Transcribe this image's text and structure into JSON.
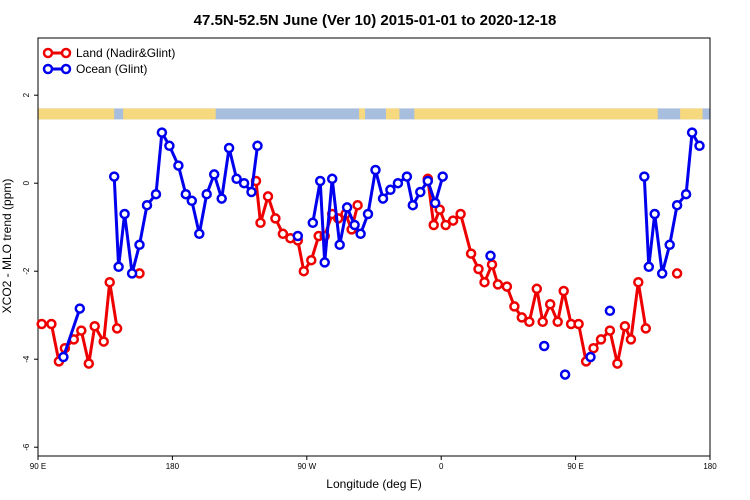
{
  "chart_data": {
    "type": "line",
    "title": "47.5N-52.5N June (Ver 10)   2015-01-01 to 2020-12-18",
    "xlabel": "Longitude (deg E)",
    "ylabel": "XCO2 - MLO trend (ppm)",
    "ylim": [
      -6.2,
      3.3
    ],
    "y_ticks": [
      -6,
      -4,
      -2,
      0,
      2
    ],
    "x_ticks": [
      {
        "pos": 0,
        "label": "90 E"
      },
      {
        "pos": 90,
        "label": "180"
      },
      {
        "pos": 180,
        "label": "90 W"
      },
      {
        "pos": 270,
        "label": "0"
      },
      {
        "pos": 360,
        "label": "90 E"
      },
      {
        "pos": 450,
        "label": "180"
      }
    ],
    "xlim": [
      0,
      450
    ],
    "land_ocean_strip": {
      "y_range": [
        1.45,
        1.7
      ],
      "ocean_color": "#a8bedf",
      "land_color": "#f6d87e"
    },
    "series": [
      {
        "name": "Land (Nadir&Glint)",
        "color": "#ee0000",
        "points": [
          [
            2.5,
            -3.2
          ],
          [
            9,
            -3.2
          ],
          [
            14,
            -4.05
          ],
          [
            18,
            -3.75
          ],
          [
            24,
            -3.55
          ],
          [
            29,
            -3.35
          ],
          [
            34,
            -4.1
          ],
          [
            38,
            -3.25
          ],
          [
            44,
            -3.6
          ],
          [
            48,
            -2.25
          ],
          [
            53,
            -3.3
          ],
          [
            null,
            null
          ],
          [
            68,
            -2.05
          ],
          [
            null,
            null
          ],
          [
            146,
            0.05
          ],
          [
            149,
            -0.9
          ],
          [
            154,
            -0.3
          ],
          [
            159,
            -0.8
          ],
          [
            164,
            -1.15
          ],
          [
            169,
            -1.25
          ],
          [
            174,
            -1.3
          ],
          [
            178,
            -2.0
          ],
          [
            183,
            -1.75
          ],
          [
            188,
            -1.2
          ],
          [
            192,
            -1.2
          ],
          [
            197,
            -0.7
          ],
          [
            201,
            -0.8
          ],
          [
            206,
            -0.7
          ],
          [
            210,
            -1.05
          ],
          [
            214,
            -0.5
          ],
          [
            null,
            null
          ],
          [
            261,
            0.1
          ],
          [
            265,
            -0.95
          ],
          [
            269,
            -0.6
          ],
          [
            273,
            -0.95
          ],
          [
            278,
            -0.85
          ],
          [
            283,
            -0.7
          ],
          [
            290,
            -1.6
          ],
          [
            295,
            -1.95
          ],
          [
            299,
            -2.25
          ],
          [
            304,
            -1.85
          ],
          [
            308,
            -2.3
          ],
          [
            314,
            -2.35
          ],
          [
            319,
            -2.8
          ],
          [
            324,
            -3.05
          ],
          [
            329,
            -3.15
          ],
          [
            334,
            -2.4
          ],
          [
            338,
            -3.15
          ],
          [
            343,
            -2.75
          ],
          [
            348,
            -3.15
          ],
          [
            352,
            -2.45
          ],
          [
            357,
            -3.2
          ],
          [
            362,
            -3.2
          ],
          [
            367,
            -4.05
          ],
          [
            372,
            -3.75
          ],
          [
            377,
            -3.55
          ],
          [
            383,
            -3.35
          ],
          [
            388,
            -4.1
          ],
          [
            393,
            -3.25
          ],
          [
            397,
            -3.55
          ],
          [
            402,
            -2.25
          ],
          [
            407,
            -3.3
          ],
          [
            null,
            null
          ],
          [
            428,
            -2.05
          ]
        ]
      },
      {
        "name": "Ocean (Glint)",
        "color": "#0000ee",
        "points": [
          [
            17,
            -3.95
          ],
          [
            28,
            -2.85
          ],
          [
            null,
            null
          ],
          [
            51,
            0.15
          ],
          [
            54,
            -1.9
          ],
          [
            58,
            -0.7
          ],
          [
            63,
            -2.05
          ],
          [
            68,
            -1.4
          ],
          [
            73,
            -0.5
          ],
          [
            79,
            -0.25
          ],
          [
            83,
            1.15
          ],
          [
            88,
            0.85
          ],
          [
            94,
            0.4
          ],
          [
            99,
            -0.25
          ],
          [
            103,
            -0.4
          ],
          [
            108,
            -1.15
          ],
          [
            113,
            -0.25
          ],
          [
            118,
            0.2
          ],
          [
            123,
            -0.35
          ],
          [
            128,
            0.8
          ],
          [
            133,
            0.1
          ],
          [
            138,
            0.0
          ],
          [
            143,
            -0.2
          ],
          [
            147,
            0.85
          ],
          [
            null,
            null
          ],
          [
            174,
            -1.2
          ],
          [
            null,
            null
          ],
          [
            184,
            -0.9
          ],
          [
            189,
            0.05
          ],
          [
            192,
            -1.8
          ],
          [
            197,
            0.1
          ],
          [
            202,
            -1.4
          ],
          [
            207,
            -0.55
          ],
          [
            212,
            -0.95
          ],
          [
            216,
            -1.15
          ],
          [
            221,
            -0.7
          ],
          [
            226,
            0.3
          ],
          [
            231,
            -0.35
          ],
          [
            236,
            -0.15
          ],
          [
            241,
            0.0
          ],
          [
            247,
            0.15
          ],
          [
            251,
            -0.5
          ],
          [
            256,
            -0.2
          ],
          [
            261,
            0.05
          ],
          [
            266,
            -0.45
          ],
          [
            271,
            0.15
          ],
          [
            null,
            null
          ],
          [
            303,
            -1.65
          ],
          [
            null,
            null
          ],
          [
            339,
            -3.7
          ],
          [
            null,
            null
          ],
          [
            353,
            -4.35
          ],
          [
            null,
            null
          ],
          [
            370,
            -3.95
          ],
          [
            null,
            null
          ],
          [
            383,
            -2.9
          ],
          [
            null,
            null
          ],
          [
            406,
            0.15
          ],
          [
            409,
            -1.9
          ],
          [
            413,
            -0.7
          ],
          [
            418,
            -2.05
          ],
          [
            423,
            -1.4
          ],
          [
            428,
            -0.5
          ],
          [
            434,
            -0.25
          ],
          [
            438,
            1.15
          ],
          [
            443,
            0.85
          ]
        ]
      }
    ],
    "legend": {
      "placement": "top-left"
    },
    "grid": false
  }
}
